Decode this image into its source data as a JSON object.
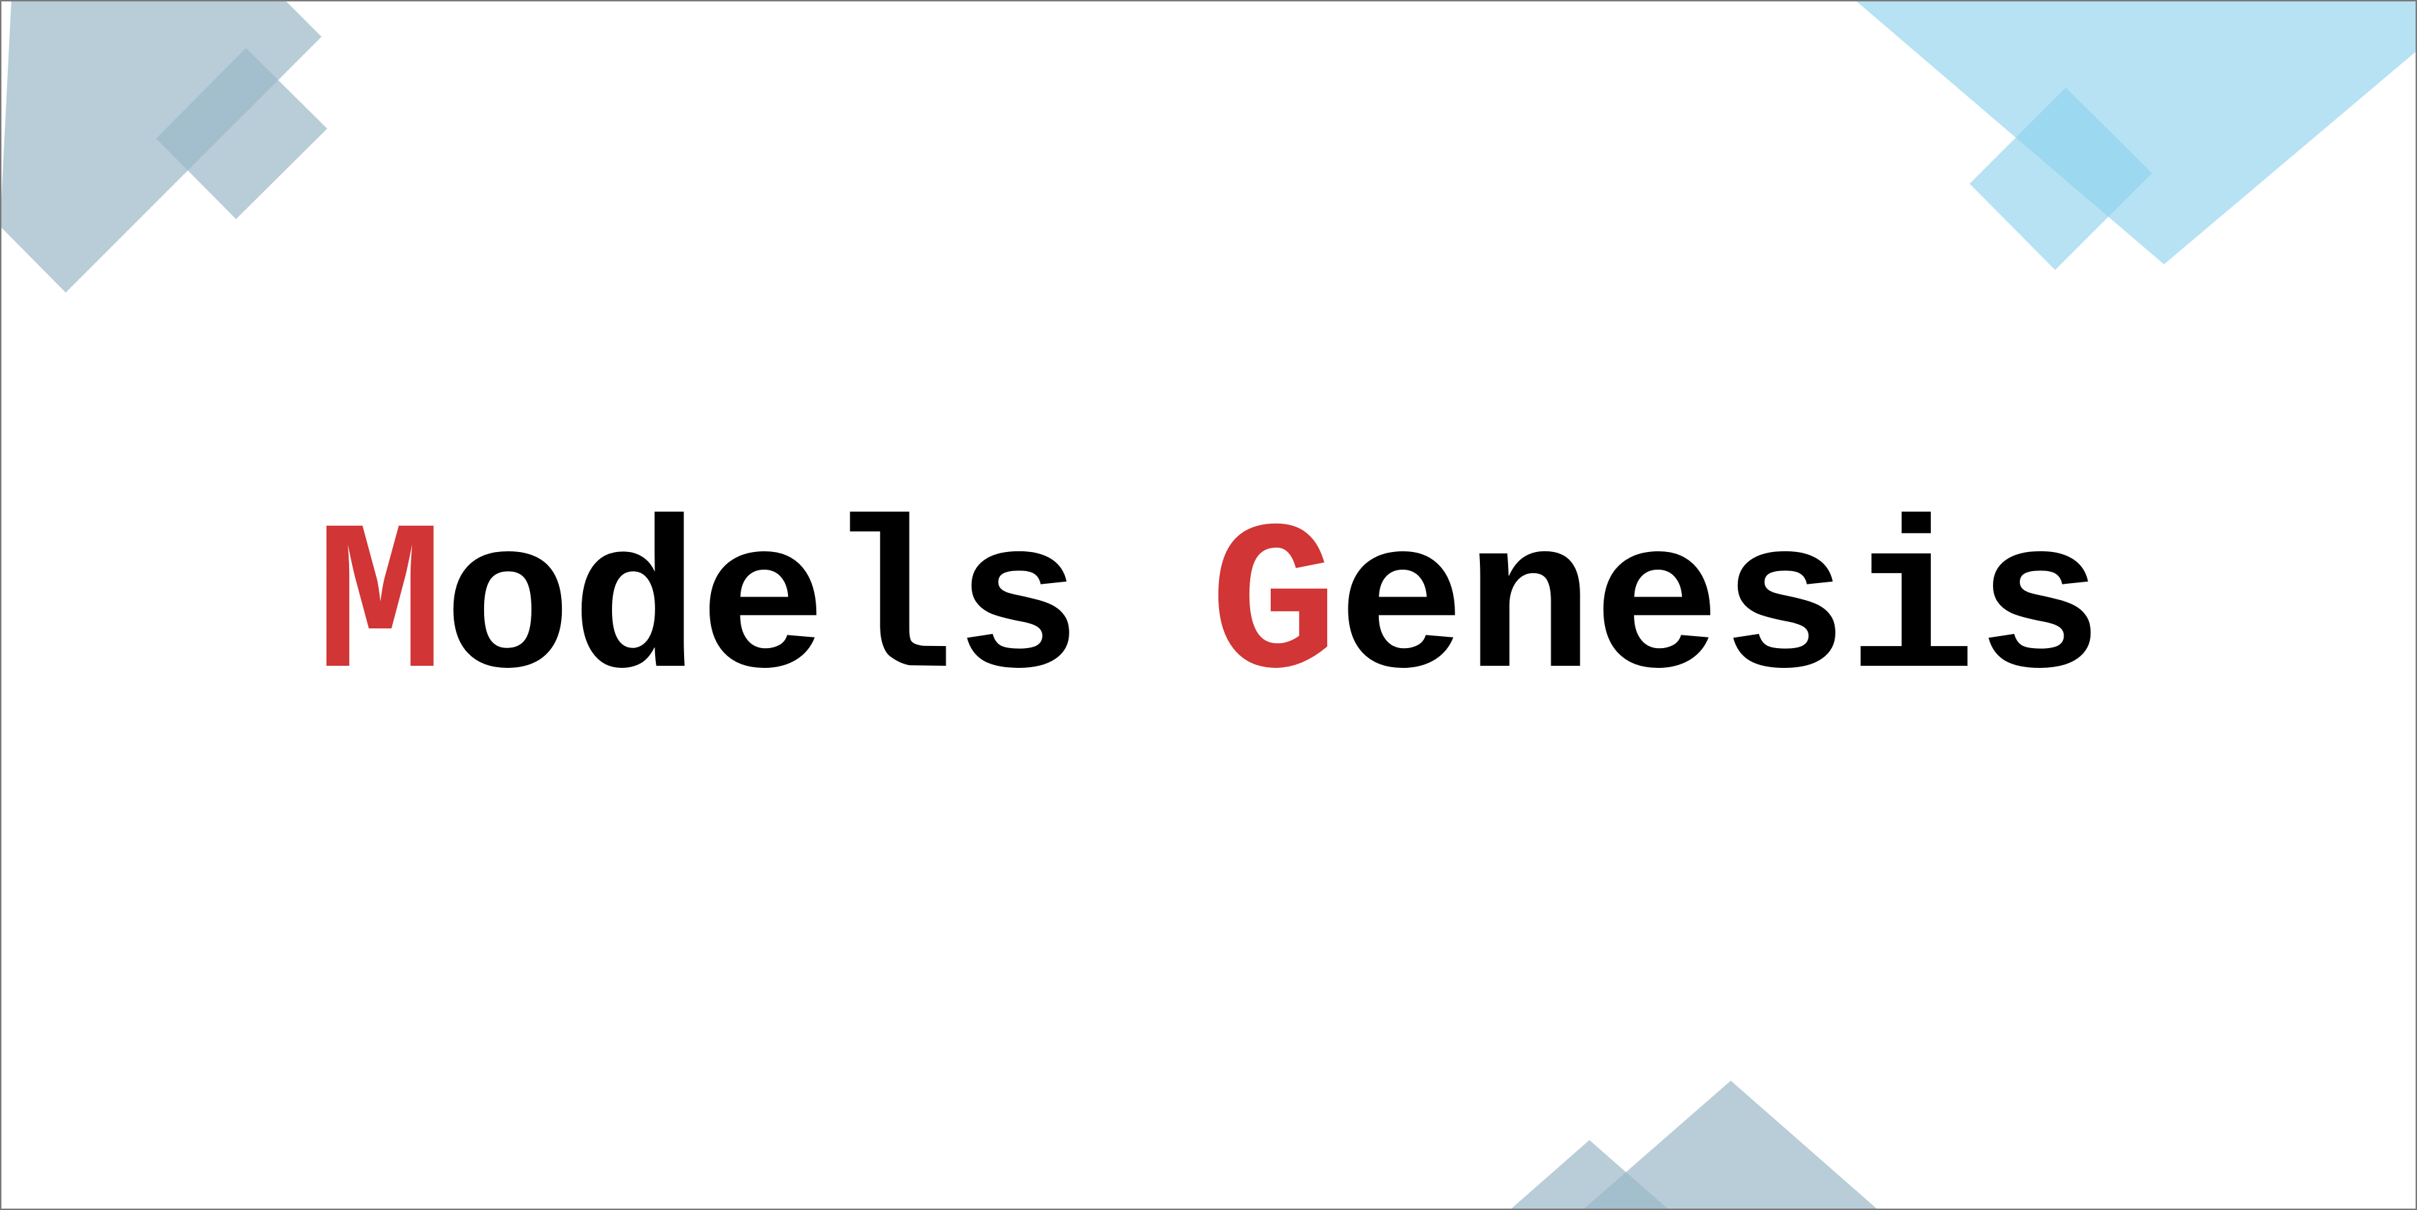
{
  "title": {
    "word_1": {
      "initial": "M",
      "rest": "odels"
    },
    "word_2": {
      "initial": "G",
      "rest": "enesis"
    }
  },
  "colors": {
    "background": "#ffffff",
    "text": "#000000",
    "initial_letters": "#d13535",
    "steel_blue_shapes": "#9ab8c8",
    "sky_blue_shapes": "#8fd3ec"
  }
}
